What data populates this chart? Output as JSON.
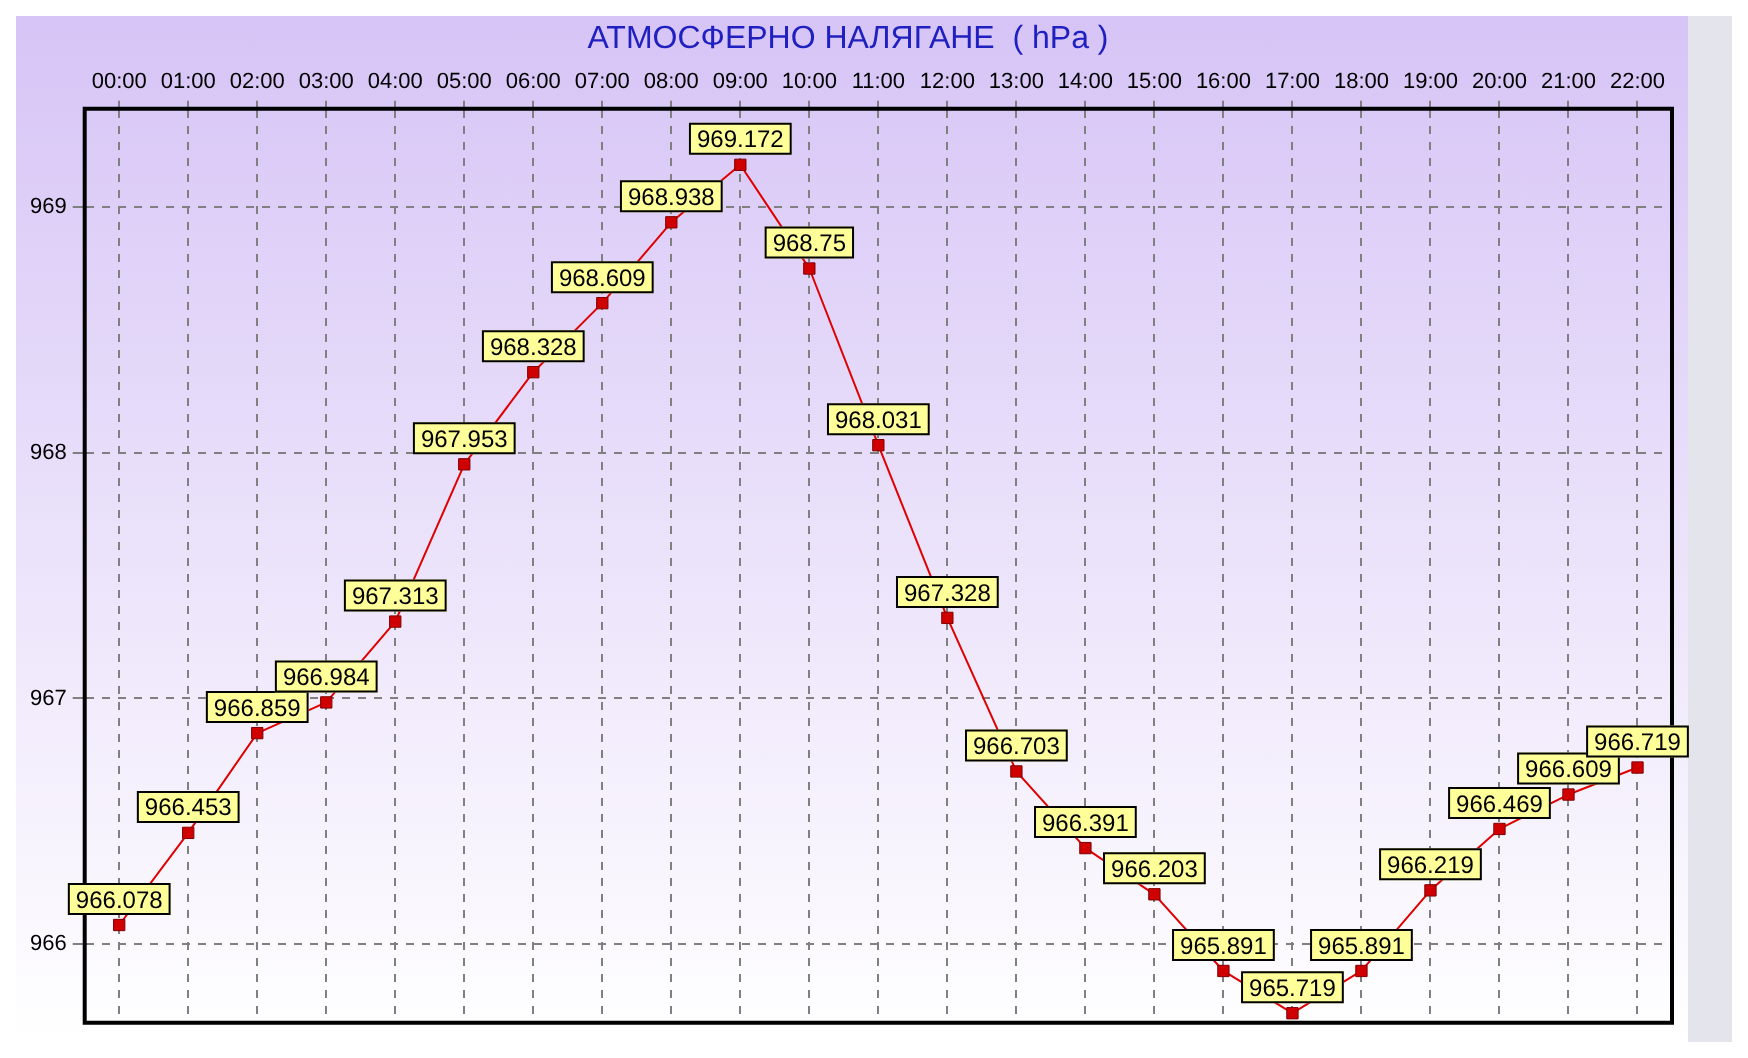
{
  "chart_data": {
    "type": "line",
    "title": "АТМОСФЕРНО НАЛЯГАНЕ  ( hPa )",
    "categories": [
      "00:00",
      "01:00",
      "02:00",
      "03:00",
      "04:00",
      "05:00",
      "06:00",
      "07:00",
      "08:00",
      "09:00",
      "10:00",
      "11:00",
      "12:00",
      "13:00",
      "14:00",
      "15:00",
      "16:00",
      "17:00",
      "18:00",
      "19:00",
      "20:00",
      "21:00",
      "22:00"
    ],
    "series": [
      {
        "color": "#e00000",
        "values": [
          966.078,
          966.453,
          966.859,
          966.984,
          967.313,
          967.953,
          968.328,
          968.609,
          968.938,
          969.172,
          968.75,
          968.031,
          967.328,
          966.703,
          966.391,
          966.203,
          965.891,
          965.719,
          965.891,
          966.219,
          966.469,
          966.609,
          966.719
        ]
      }
    ],
    "ylim": [
      965.68,
      969.4
    ],
    "yticks": [
      966,
      967,
      968,
      969
    ],
    "grid": true,
    "marker": "square",
    "line_style": "solid",
    "data_labels": true,
    "legend": false
  }
}
